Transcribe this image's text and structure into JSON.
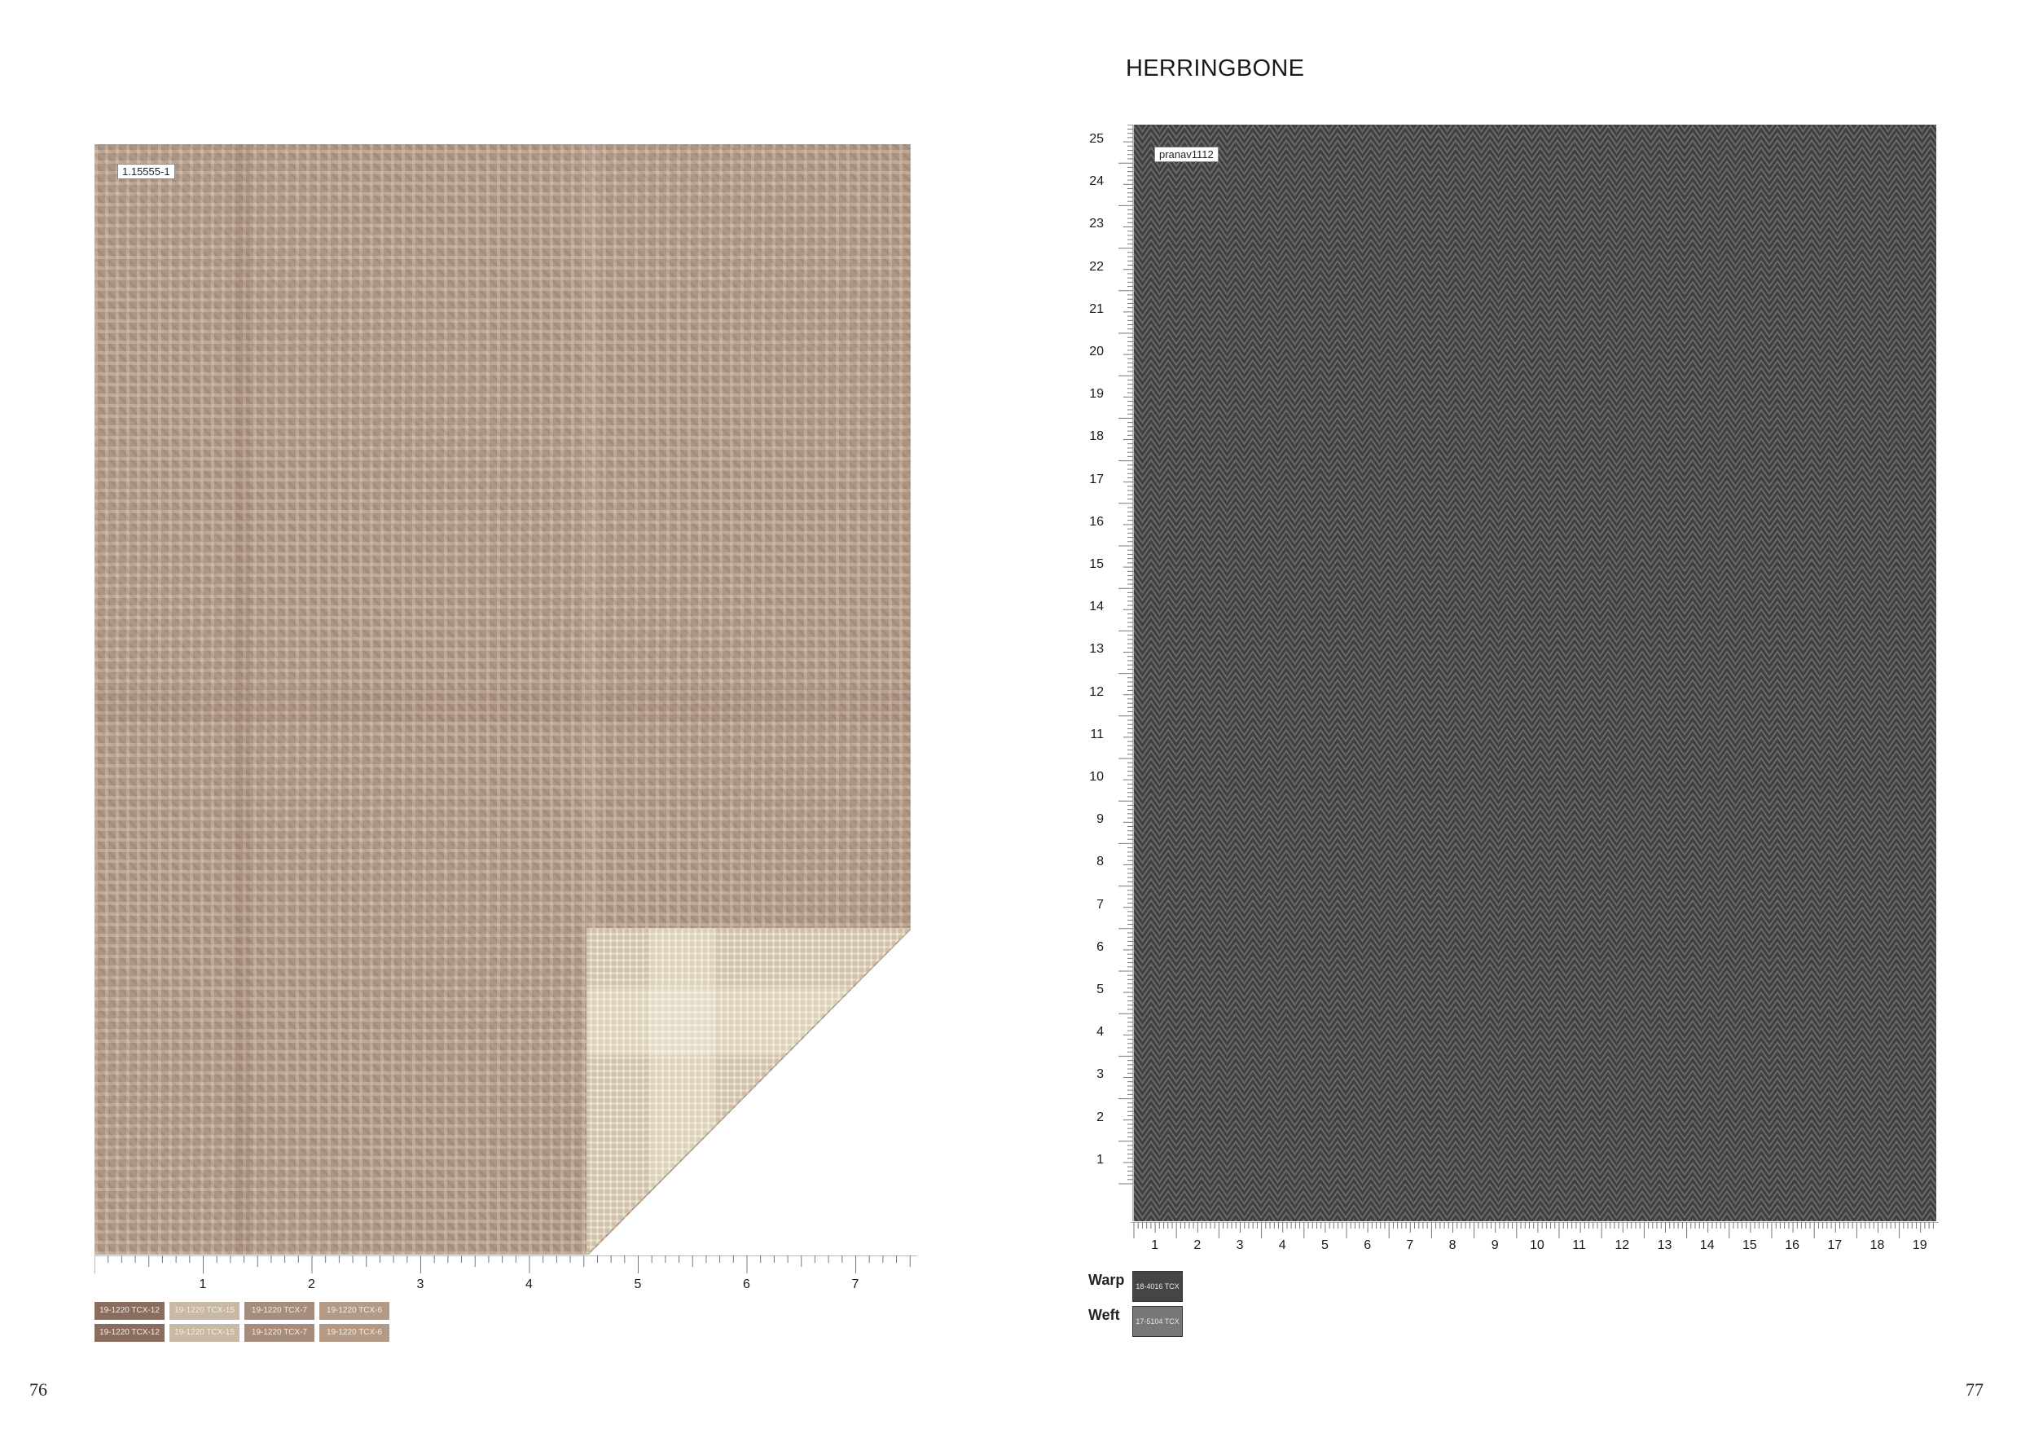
{
  "page": {
    "title": "HERRINGBONE",
    "left_page_number": "76",
    "right_page_number": "77"
  },
  "left_sample": {
    "label": "1.15555-1",
    "ruler_labels": [
      "1",
      "2",
      "3",
      "4",
      "5",
      "6",
      "7"
    ],
    "swatch_rows": [
      [
        {
          "label": "19-1220 TCX-12",
          "color": "#8a6d5e"
        },
        {
          "label": "19-1220 TCX-15",
          "color": "#c8b9a5"
        },
        {
          "label": "19-1220 TCX-7",
          "color": "#a68d7b"
        },
        {
          "label": "19-1220 TCX-6",
          "color": "#b29a86"
        }
      ],
      [
        {
          "label": "19-1220 TCX-12",
          "color": "#8a6d5e"
        },
        {
          "label": "19-1220 TCX-15",
          "color": "#c8b9a5"
        },
        {
          "label": "19-1220 TCX-7",
          "color": "#a68d7b"
        },
        {
          "label": "19-1220 TCX-6",
          "color": "#b29a86"
        }
      ]
    ]
  },
  "right_sample": {
    "label": "pranav1112",
    "vertical_ruler_labels": [
      "25",
      "24",
      "23",
      "22",
      "21",
      "20",
      "19",
      "18",
      "17",
      "16",
      "15",
      "14",
      "13",
      "12",
      "11",
      "10",
      "9",
      "8",
      "7",
      "6",
      "5",
      "4",
      "3",
      "2",
      "1"
    ],
    "horizontal_ruler_labels": [
      "1",
      "2",
      "3",
      "4",
      "5",
      "6",
      "7",
      "8",
      "9",
      "10",
      "11",
      "12",
      "13",
      "14",
      "15",
      "16",
      "17",
      "18",
      "19"
    ],
    "warp": {
      "label": "Warp",
      "swatch": "18-4016 TCX",
      "color": "#454545"
    },
    "weft": {
      "label": "Weft",
      "swatch": "17-5104 TCX",
      "color": "#777777"
    }
  }
}
